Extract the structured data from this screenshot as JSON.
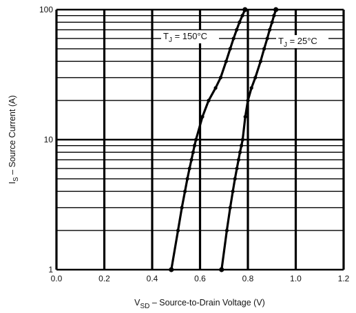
{
  "chart_data": {
    "type": "line",
    "x_scale": "linear",
    "y_scale": "log",
    "xlim": [
      0.0,
      1.2
    ],
    "ylim": [
      1,
      100
    ],
    "grid": true,
    "x_ticks": [
      0.0,
      0.2,
      0.4,
      0.6,
      0.8,
      1.0,
      1.2
    ],
    "x_tick_labels": [
      "0.0",
      "0.2",
      "0.4",
      "0.6",
      "0.8",
      "1.0",
      "1.2"
    ],
    "y_ticks": [
      1,
      10,
      100
    ],
    "y_tick_labels": [
      "1",
      "10",
      "100"
    ],
    "xlabel": {
      "main": "V",
      "sub": "SD",
      "rest": " – Source-to-Drain Voltage (V)"
    },
    "ylabel": {
      "main": "I",
      "sub": "S",
      "rest": " – Source Current (A)"
    },
    "series": [
      {
        "label": {
          "main": "T",
          "sub": "J",
          "rest": " = 150°C"
        },
        "points": [
          [
            0.48,
            1.0
          ],
          [
            0.508,
            2.0
          ],
          [
            0.524,
            3.0
          ],
          [
            0.537,
            4.0
          ],
          [
            0.547,
            5.0
          ],
          [
            0.556,
            6.0
          ],
          [
            0.564,
            7.0
          ],
          [
            0.571,
            8.0
          ],
          [
            0.577,
            9.0
          ],
          [
            0.583,
            10.0
          ],
          [
            0.61,
            15.0
          ],
          [
            0.636,
            20.0
          ],
          [
            0.665,
            25.0
          ],
          [
            0.686,
            30.0
          ],
          [
            0.709,
            40.0
          ],
          [
            0.726,
            50.0
          ],
          [
            0.74,
            60.0
          ],
          [
            0.753,
            70.0
          ],
          [
            0.765,
            80.0
          ],
          [
            0.777,
            90.0
          ],
          [
            0.788,
            100.0
          ]
        ]
      },
      {
        "label": {
          "main": "T",
          "sub": "J",
          "rest": " = 25°C"
        },
        "points": [
          [
            0.69,
            1.0
          ],
          [
            0.712,
            2.0
          ],
          [
            0.726,
            3.0
          ],
          [
            0.737,
            4.0
          ],
          [
            0.746,
            5.0
          ],
          [
            0.754,
            6.0
          ],
          [
            0.761,
            7.0
          ],
          [
            0.767,
            8.0
          ],
          [
            0.773,
            9.0
          ],
          [
            0.778,
            10.0
          ],
          [
            0.789,
            15.0
          ],
          [
            0.8,
            20.0
          ],
          [
            0.815,
            25.0
          ],
          [
            0.831,
            30.0
          ],
          [
            0.853,
            40.0
          ],
          [
            0.868,
            50.0
          ],
          [
            0.881,
            60.0
          ],
          [
            0.891,
            70.0
          ],
          [
            0.901,
            80.0
          ],
          [
            0.909,
            90.0
          ],
          [
            0.917,
            100.0
          ]
        ]
      }
    ]
  }
}
